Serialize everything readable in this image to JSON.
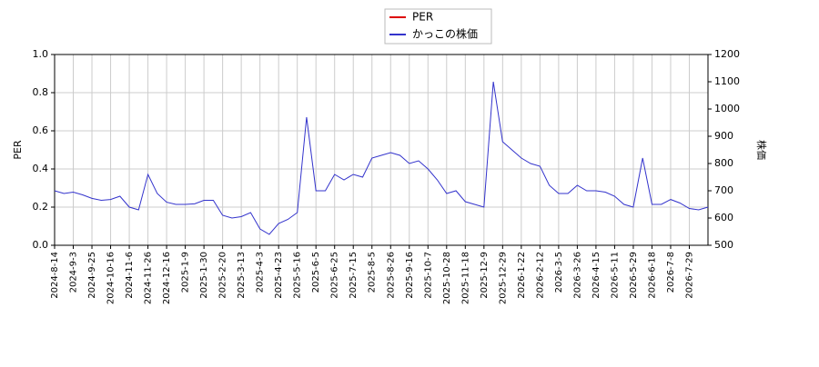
{
  "chart_data": {
    "type": "line",
    "ylabel": "PER",
    "y2label": "株価",
    "categories": [
      "2024-8-14",
      null,
      "2024-9-3",
      null,
      "2024-9-25",
      null,
      "2024-10-16",
      null,
      "2024-11-6",
      null,
      "2024-11-26",
      null,
      "2024-12-16",
      null,
      "2025-1-9",
      null,
      "2025-1-30",
      null,
      "2025-2-20",
      null,
      "2025-3-13",
      null,
      "2025-4-3",
      null,
      "2025-4-23",
      null,
      "2025-5-16",
      null,
      "2025-6-5",
      null,
      "2025-6-25",
      null,
      "2025-7-15",
      null,
      "2025-8-5",
      null,
      "2025-8-26",
      null,
      "2025-9-16",
      null,
      "2025-10-7",
      null,
      "2025-10-28",
      null,
      "2025-11-18",
      null,
      "2025-12-9",
      null,
      "2025-12-29",
      null,
      "2026-1-22",
      null,
      "2026-2-12",
      null,
      "2026-3-5",
      null,
      "2026-3-26",
      null,
      "2026-4-15",
      null,
      "2026-5-11",
      null,
      "2026-5-29",
      null,
      "2026-6-18",
      null,
      "2026-7-8",
      null,
      "2026-7-29",
      null,
      null
    ],
    "series": [
      {
        "name": "PER",
        "color": "#dd0000",
        "axis": "y",
        "values": [
          null,
          null,
          null,
          null,
          null,
          null,
          null,
          null,
          null,
          null,
          null,
          null,
          null,
          null,
          null,
          null,
          null,
          null,
          null,
          null,
          null,
          null,
          null,
          null,
          null,
          null,
          null,
          null,
          null,
          null,
          null,
          null,
          null,
          null,
          null,
          null,
          null,
          null,
          null,
          null,
          null,
          null,
          null,
          null,
          null,
          null,
          null,
          null,
          null,
          null,
          null,
          null,
          null,
          null,
          null,
          null,
          null,
          null,
          null,
          null,
          null,
          null,
          null,
          null,
          null,
          null,
          null,
          null,
          null,
          null,
          null
        ]
      },
      {
        "name": "かっこの株価",
        "color": "#3333cc",
        "axis": "y2",
        "values": [
          700,
          690,
          695,
          685,
          672,
          665,
          668,
          680,
          640,
          630,
          760,
          690,
          658,
          650,
          650,
          652,
          665,
          665,
          610,
          600,
          605,
          620,
          560,
          540,
          580,
          595,
          620,
          970,
          700,
          700,
          760,
          740,
          760,
          750,
          820,
          830,
          840,
          830,
          800,
          810,
          780,
          740,
          690,
          700,
          660,
          650,
          640,
          1100,
          880,
          850,
          820,
          800,
          790,
          720,
          690,
          690,
          720,
          700,
          700,
          695,
          680,
          650,
          640,
          820,
          650,
          650,
          668,
          655,
          635,
          630,
          640
        ]
      }
    ],
    "ylim": [
      0,
      1
    ],
    "yticks": [
      {
        "value": 0,
        "label": "0.0"
      },
      {
        "value": 0.2,
        "label": "0.2"
      },
      {
        "value": 0.4,
        "label": "0.4"
      },
      {
        "value": 0.6,
        "label": "0.6"
      },
      {
        "value": 0.8,
        "label": "0.8"
      },
      {
        "value": 1,
        "label": "1.0"
      }
    ],
    "y2lim": [
      500,
      1200
    ],
    "y2ticks": [
      500,
      600,
      700,
      800,
      900,
      1000,
      1100,
      1200
    ],
    "grid": true,
    "legend": "top"
  }
}
